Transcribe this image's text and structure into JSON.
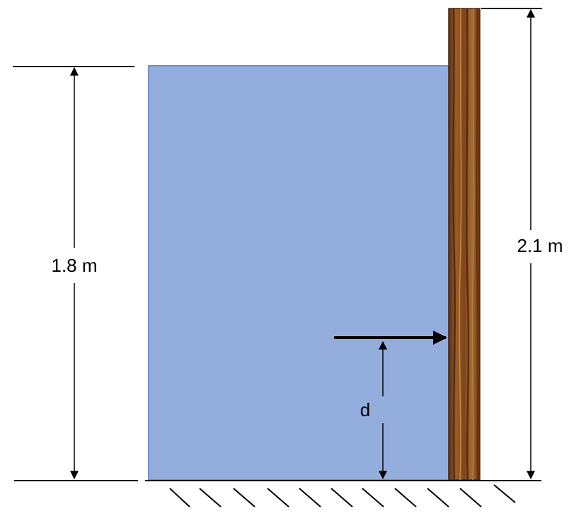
{
  "labels": {
    "water_height": "1.8 m",
    "wall_height": "2.1 m",
    "force_location": "d"
  },
  "colors": {
    "water": "#93aedc",
    "water_edge": "#6f8fc8",
    "wood_dark": "#6a3812",
    "wood_mid": "#8a4f22",
    "wood_light": "#b07a40",
    "ink": "#000000"
  }
}
